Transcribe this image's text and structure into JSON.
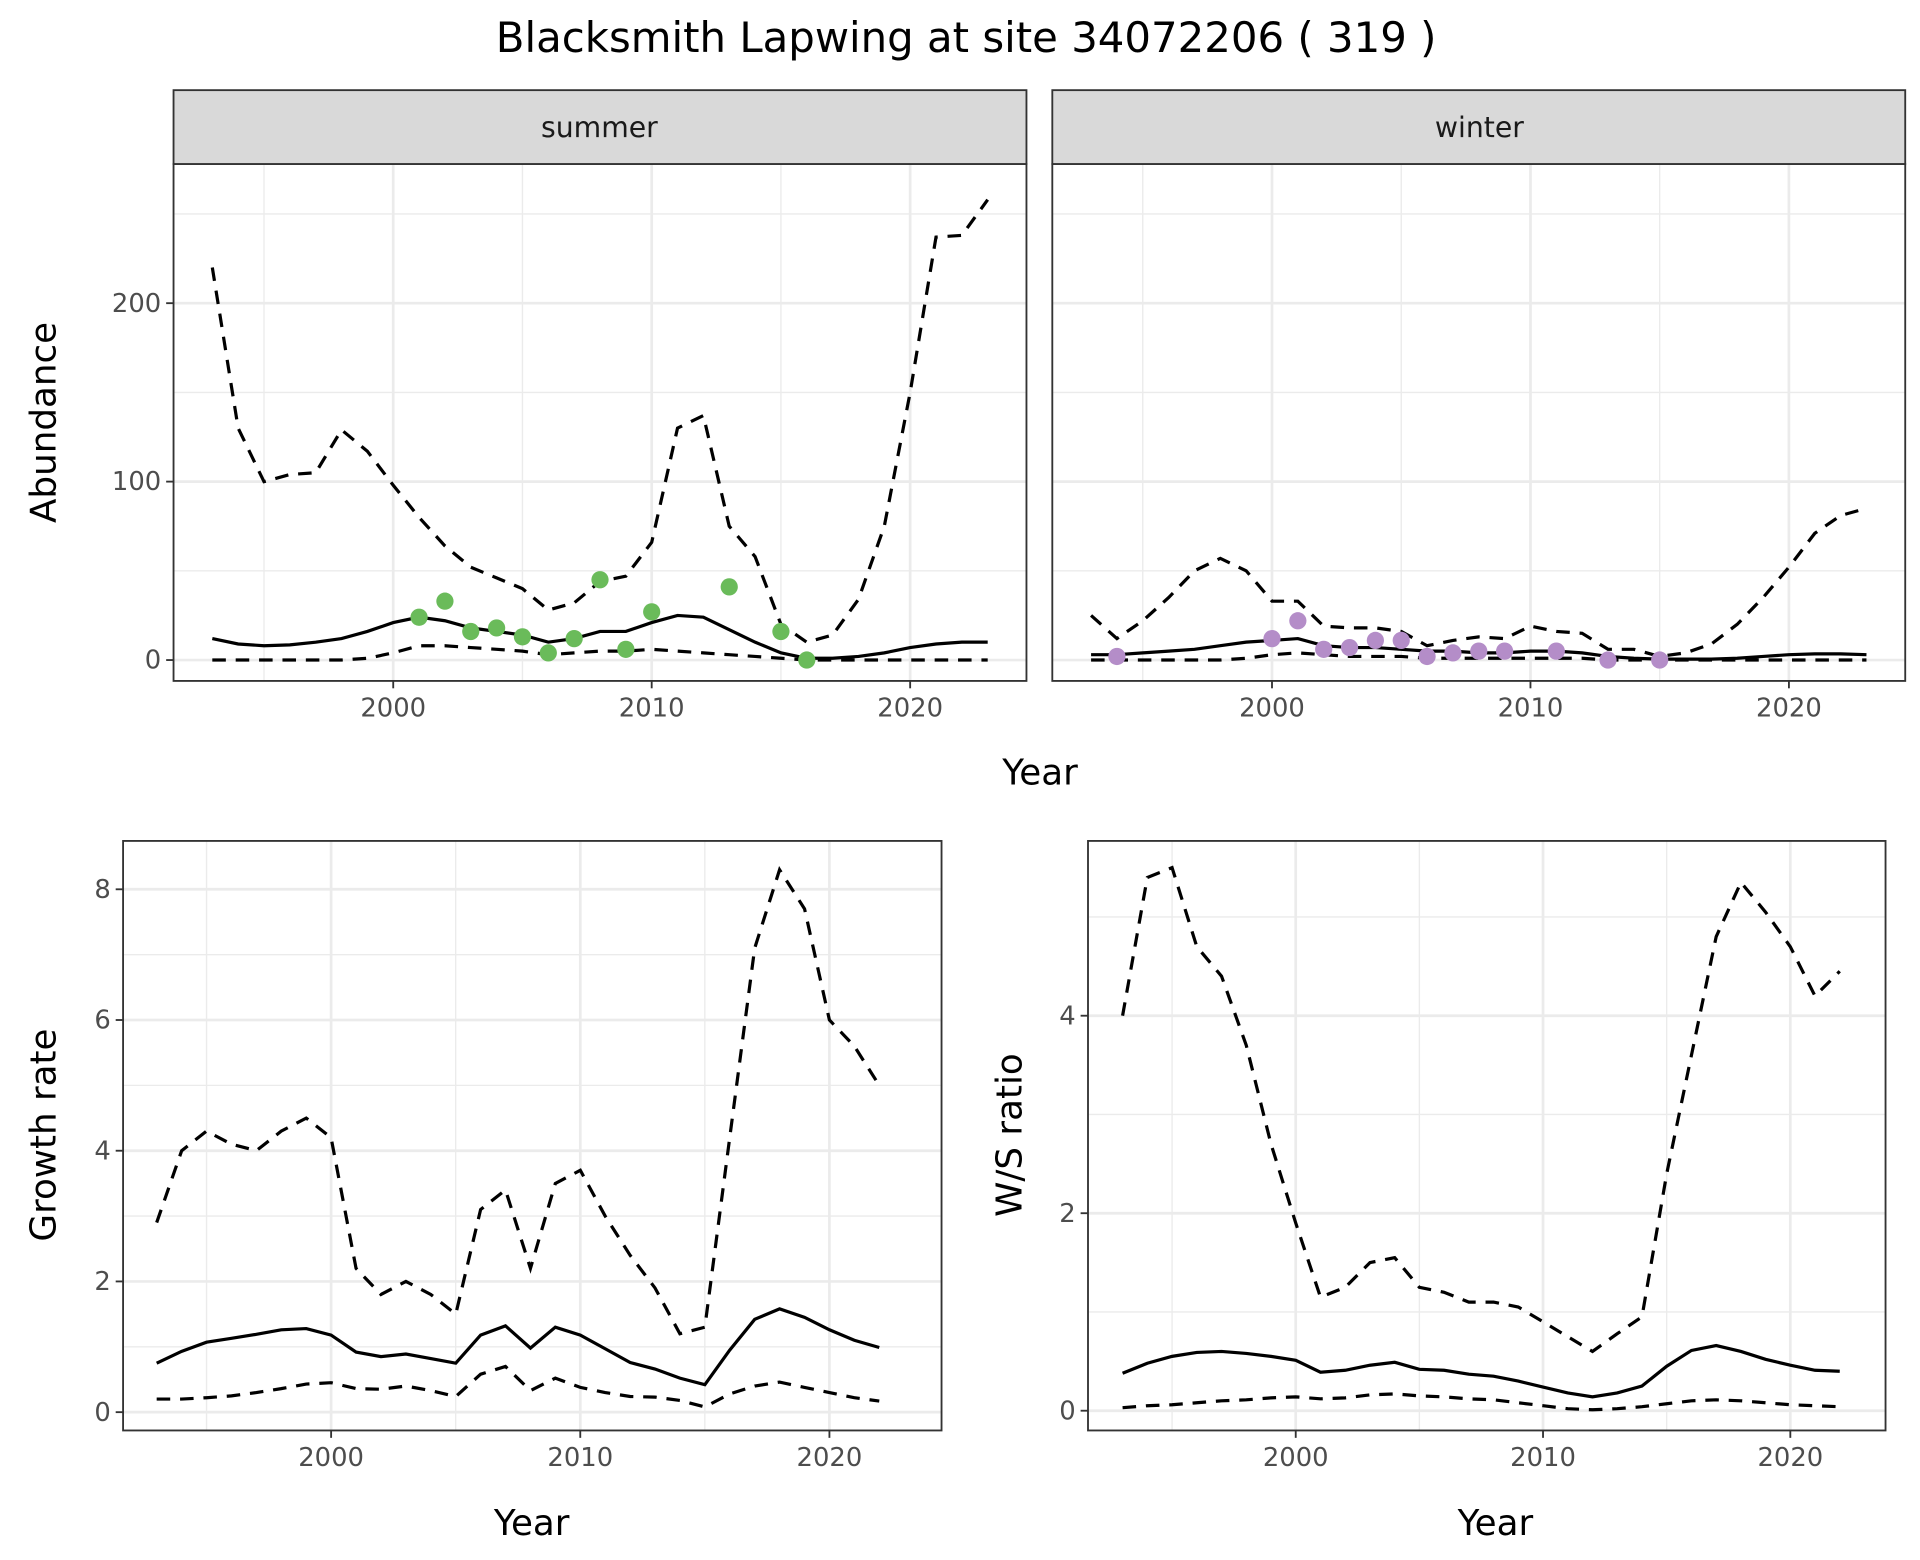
{
  "title": "Blacksmith Lapwing at site 34072206 ( 319 )",
  "colors": {
    "summer_points": "#6abb5a",
    "winter_points": "#b48dc8",
    "lines": "#000000",
    "grid": "#ebebeb",
    "strip": "#d9d9d9"
  },
  "chart_data": [
    {
      "type": "line",
      "facet": "summer",
      "xlabel": "Year",
      "ylabel": "Abundance",
      "xlim": [
        1991.5,
        2024.5
      ],
      "ylim": [
        -11.7,
        278
      ],
      "xticks": [
        2000,
        2010,
        2020
      ],
      "yticks": [
        0,
        100,
        200
      ],
      "grid": true,
      "x": [
        1993,
        1994,
        1995,
        1996,
        1997,
        1998,
        1999,
        2000,
        2001,
        2002,
        2003,
        2004,
        2005,
        2006,
        2007,
        2008,
        2009,
        2010,
        2011,
        2012,
        2013,
        2014,
        2015,
        2016,
        2017,
        2018,
        2019,
        2020,
        2021,
        2022,
        2023
      ],
      "upper": [
        220,
        130,
        100,
        104,
        105,
        129,
        117,
        98,
        80,
        64,
        52,
        46,
        40,
        28,
        32,
        44,
        47,
        66,
        130,
        137,
        75,
        58,
        20,
        10,
        14,
        34,
        75,
        150,
        237,
        238,
        258
      ],
      "median": [
        12,
        9,
        8,
        8.5,
        10,
        12,
        16,
        21,
        24,
        22,
        18,
        16,
        14,
        10,
        12,
        16,
        16,
        21,
        25,
        24,
        17,
        10,
        4,
        1,
        1,
        2,
        4,
        7,
        9,
        10,
        10
      ],
      "lower": [
        0,
        0,
        0,
        0,
        0,
        0,
        1,
        4,
        8,
        8,
        7,
        6,
        5,
        3,
        4,
        5,
        5,
        6,
        5,
        4,
        3,
        2,
        1,
        0,
        0,
        0,
        0,
        0,
        0,
        0,
        0
      ],
      "points": {
        "x": [
          2001,
          2002,
          2003,
          2004,
          2005,
          2006,
          2007,
          2008,
          2009,
          2010,
          2013,
          2015,
          2016
        ],
        "y": [
          24,
          33,
          16,
          18,
          13,
          4,
          12,
          45,
          6,
          27,
          41,
          16,
          0
        ]
      }
    },
    {
      "type": "line",
      "facet": "winter",
      "xlabel": "Year",
      "ylabel": "Abundance",
      "xlim": [
        1991.5,
        2024.5
      ],
      "ylim": [
        -11.7,
        278
      ],
      "xticks": [
        2000,
        2010,
        2020
      ],
      "yticks": [
        0,
        100,
        200
      ],
      "grid": true,
      "x": [
        1993,
        1994,
        1995,
        1996,
        1997,
        1998,
        1999,
        2000,
        2001,
        2002,
        2003,
        2004,
        2005,
        2006,
        2007,
        2008,
        2009,
        2010,
        2011,
        2012,
        2013,
        2014,
        2015,
        2016,
        2017,
        2018,
        2019,
        2020,
        2021,
        2022,
        2023
      ],
      "upper": [
        25,
        12,
        22,
        35,
        50,
        57,
        50,
        33,
        33,
        19,
        18,
        18,
        16,
        8,
        11,
        13,
        12,
        19,
        16,
        15,
        6,
        6,
        2,
        4,
        9,
        20,
        35,
        52,
        71,
        81,
        85
      ],
      "median": [
        3,
        3,
        4,
        5,
        6,
        8,
        10,
        11,
        12,
        8,
        7,
        7,
        6,
        5,
        5,
        4,
        4,
        5,
        5,
        4,
        2,
        1,
        0.5,
        0.5,
        0.5,
        1,
        2,
        3,
        3.5,
        3.5,
        3
      ],
      "lower": [
        0,
        0,
        0,
        0,
        0,
        0,
        1,
        3,
        4,
        3,
        2,
        2,
        2,
        1,
        1,
        1,
        1,
        1,
        1,
        1,
        0,
        0,
        0,
        0,
        0,
        0,
        0,
        0,
        0,
        0,
        0
      ],
      "points": {
        "x": [
          1994,
          2000,
          2001,
          2002,
          2003,
          2004,
          2005,
          2006,
          2007,
          2008,
          2009,
          2011,
          2013,
          2015
        ],
        "y": [
          2,
          12,
          22,
          6,
          7,
          11,
          11,
          2,
          4,
          5,
          5,
          5,
          0,
          0
        ]
      }
    },
    {
      "type": "line",
      "xlabel": "Year",
      "ylabel": "Growth rate",
      "xlim": [
        1991.65,
        2024.5
      ],
      "ylim": [
        -0.28,
        8.74
      ],
      "xticks": [
        2000,
        2010,
        2020
      ],
      "yticks": [
        0,
        2,
        4,
        6,
        8
      ],
      "grid": true,
      "x": [
        1993,
        1994,
        1995,
        1996,
        1997,
        1998,
        1999,
        2000,
        2001,
        2002,
        2003,
        2004,
        2005,
        2006,
        2007,
        2008,
        2009,
        2010,
        2011,
        2012,
        2013,
        2014,
        2015,
        2016,
        2017,
        2018,
        2019,
        2020,
        2021,
        2022
      ],
      "upper": [
        2.9,
        4.0,
        4.3,
        4.1,
        4.0,
        4.3,
        4.5,
        4.2,
        2.2,
        1.8,
        2.0,
        1.8,
        1.5,
        3.1,
        3.4,
        2.2,
        3.5,
        3.7,
        3.0,
        2.4,
        1.9,
        1.2,
        1.3,
        4.2,
        7.1,
        8.3,
        7.7,
        6.0,
        5.6,
        5.0
      ],
      "median": [
        0.75,
        0.93,
        1.07,
        1.13,
        1.19,
        1.26,
        1.28,
        1.18,
        0.92,
        0.85,
        0.89,
        0.82,
        0.75,
        1.18,
        1.32,
        0.98,
        1.3,
        1.18,
        0.97,
        0.76,
        0.66,
        0.52,
        0.42,
        0.95,
        1.42,
        1.58,
        1.45,
        1.26,
        1.1,
        0.99
      ],
      "lower": [
        0.2,
        0.2,
        0.22,
        0.25,
        0.3,
        0.36,
        0.43,
        0.45,
        0.36,
        0.35,
        0.4,
        0.33,
        0.24,
        0.58,
        0.7,
        0.33,
        0.52,
        0.38,
        0.3,
        0.24,
        0.23,
        0.18,
        0.08,
        0.28,
        0.4,
        0.46,
        0.38,
        0.3,
        0.22,
        0.17
      ]
    },
    {
      "type": "line",
      "xlabel": "Year",
      "ylabel": "W/S ratio",
      "xlim": [
        1991.6,
        2023.85
      ],
      "ylim": [
        -0.2,
        5.77
      ],
      "xticks": [
        2000,
        2010,
        2020
      ],
      "yticks": [
        0,
        2,
        4
      ],
      "grid": true,
      "x": [
        1993,
        1994,
        1995,
        1996,
        1997,
        1998,
        1999,
        2000,
        2001,
        2002,
        2003,
        2004,
        2005,
        2006,
        2007,
        2008,
        2009,
        2010,
        2011,
        2012,
        2013,
        2014,
        2015,
        2016,
        2017,
        2018,
        2019,
        2020,
        2021,
        2022
      ],
      "upper": [
        4.0,
        5.4,
        5.5,
        4.7,
        4.4,
        3.7,
        2.7,
        1.9,
        1.15,
        1.25,
        1.5,
        1.55,
        1.25,
        1.2,
        1.1,
        1.1,
        1.05,
        0.9,
        0.75,
        0.6,
        0.78,
        0.95,
        2.4,
        3.6,
        4.8,
        5.35,
        5.05,
        4.7,
        4.2,
        4.45
      ],
      "median": [
        0.38,
        0.48,
        0.55,
        0.59,
        0.6,
        0.58,
        0.55,
        0.51,
        0.39,
        0.41,
        0.46,
        0.49,
        0.42,
        0.41,
        0.37,
        0.35,
        0.3,
        0.24,
        0.18,
        0.14,
        0.18,
        0.25,
        0.45,
        0.61,
        0.66,
        0.6,
        0.52,
        0.46,
        0.41,
        0.4
      ],
      "lower": [
        0.03,
        0.05,
        0.06,
        0.08,
        0.1,
        0.11,
        0.13,
        0.14,
        0.12,
        0.13,
        0.16,
        0.17,
        0.15,
        0.14,
        0.12,
        0.11,
        0.08,
        0.05,
        0.02,
        0.01,
        0.02,
        0.04,
        0.07,
        0.1,
        0.11,
        0.1,
        0.08,
        0.06,
        0.05,
        0.04
      ]
    }
  ]
}
